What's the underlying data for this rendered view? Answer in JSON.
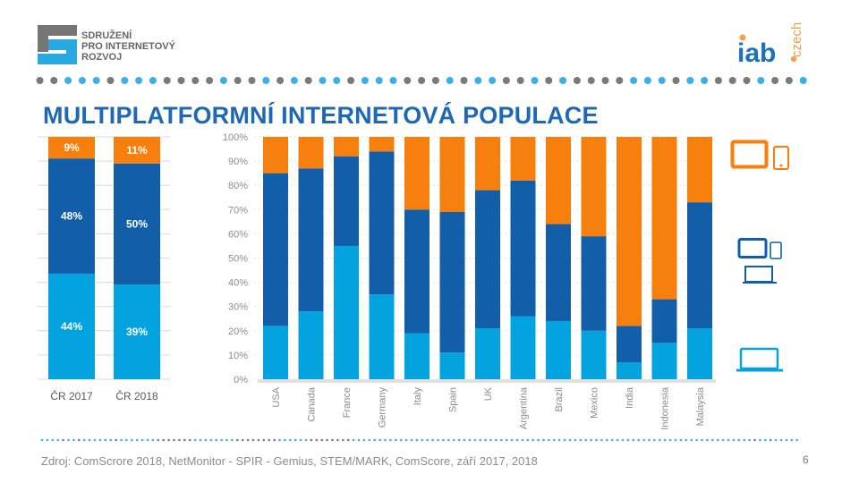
{
  "header": {
    "org_name_lines": [
      "SDRUŽENÍ",
      "PRO INTERNETOVÝ",
      "ROZVOJ"
    ],
    "iab_logo_text": "iab",
    "iab_logo_suffix": "czech"
  },
  "title": "MULTIPLATFORMNÍ INTERNETOVÁ POPULACE",
  "colors": {
    "orange": "#f77f0e",
    "dark_blue": "#125ea9",
    "light_blue": "#03a3e0",
    "title": "#1e68b5"
  },
  "legend_icons": [
    {
      "icon": "tablet-phone-icon",
      "color": "#f77f0e"
    },
    {
      "icon": "tablet-phone-laptop-icon",
      "color": "#125ea9"
    },
    {
      "icon": "laptop-icon",
      "color": "#03a3e0"
    }
  ],
  "chart_data": [
    {
      "type": "bar",
      "stacked": true,
      "categories": [
        "ČR 2017",
        "ČR 2018"
      ],
      "series": [
        {
          "values": [
            44,
            39
          ],
          "labels": [
            "44%",
            "39%"
          ],
          "color": "#03a3e0"
        },
        {
          "values": [
            48,
            50
          ],
          "labels": [
            "48%",
            "50%"
          ],
          "color": "#125ea9"
        },
        {
          "values": [
            9,
            11
          ],
          "labels": [
            "9%",
            "11%"
          ],
          "color": "#f77f0e"
        }
      ],
      "ylim": [
        0,
        100
      ],
      "grid": true
    },
    {
      "type": "bar",
      "stacked": true,
      "percent": true,
      "categories": [
        "USA",
        "Canada",
        "France",
        "Germany",
        "Italy",
        "Spain",
        "UK",
        "Argentina",
        "Brazil",
        "Mexico",
        "India",
        "Indonesia",
        "Malaysia"
      ],
      "series": [
        {
          "values": [
            22,
            28,
            55,
            35,
            19,
            11,
            21,
            26,
            24,
            20,
            7,
            15,
            21
          ],
          "color": "#03a3e0"
        },
        {
          "values": [
            63,
            59,
            37,
            59,
            51,
            58,
            57,
            56,
            40,
            39,
            15,
            18,
            52
          ],
          "color": "#125ea9"
        },
        {
          "values": [
            15,
            13,
            8,
            6,
            30,
            31,
            22,
            18,
            36,
            41,
            78,
            67,
            27
          ],
          "color": "#f77f0e"
        }
      ],
      "yticks": [
        "0%",
        "10%",
        "20%",
        "30%",
        "40%",
        "50%",
        "60%",
        "70%",
        "80%",
        "90%",
        "100%"
      ],
      "ylim": [
        0,
        100
      ],
      "grid": true
    }
  ],
  "footer": {
    "source": "Zdroj: ComScrore 2018, NetMonitor - SPIR - Gemius,  STEM/MARK, ComScore, září 2017, 2018",
    "page_number": "6"
  }
}
